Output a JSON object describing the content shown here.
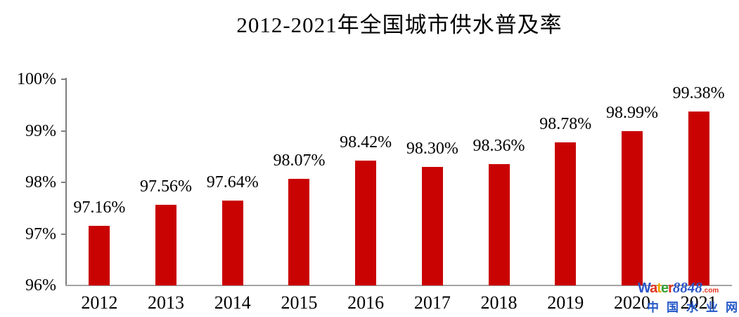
{
  "chart_data": {
    "type": "bar",
    "title": "2012-2021年全国城市供水普及率",
    "categories": [
      "2012",
      "2013",
      "2014",
      "2015",
      "2016",
      "2017",
      "2018",
      "2019",
      "2020",
      "2021"
    ],
    "values": [
      97.16,
      97.56,
      97.64,
      98.07,
      98.42,
      98.3,
      98.36,
      98.78,
      98.99,
      99.38
    ],
    "data_labels": [
      "97.16%",
      "97.56%",
      "97.64%",
      "98.07%",
      "98.42%",
      "98.30%",
      "98.36%",
      "98.78%",
      "98.99%",
      "99.38%"
    ],
    "xlabel": "",
    "ylabel": "",
    "ylim": [
      96,
      100
    ],
    "ytick_values": [
      100,
      99,
      98,
      97,
      96
    ],
    "ytick_labels": [
      "100%",
      "99%",
      "98%",
      "97%",
      "96%"
    ],
    "grid": false,
    "legend_position": "none",
    "bar_color": "#c90202"
  },
  "watermark": {
    "line1": [
      {
        "text": "W",
        "color": "#2b55c8",
        "style": "sans"
      },
      {
        "text": "a",
        "color": "#e0321e",
        "style": "sans"
      },
      {
        "text": "t",
        "color": "#f0a300",
        "style": "sans"
      },
      {
        "text": "e",
        "color": "#35a435",
        "style": "sans"
      },
      {
        "text": "r",
        "color": "#e0321e",
        "style": "sans"
      },
      {
        "text": "8848",
        "color": "#2b55c8",
        "style": "italic"
      },
      {
        "text": ".com",
        "color": "#e0321e",
        "style": "dotcom"
      }
    ],
    "line2": "中国水业网",
    "line2_color": "#2458c8"
  }
}
